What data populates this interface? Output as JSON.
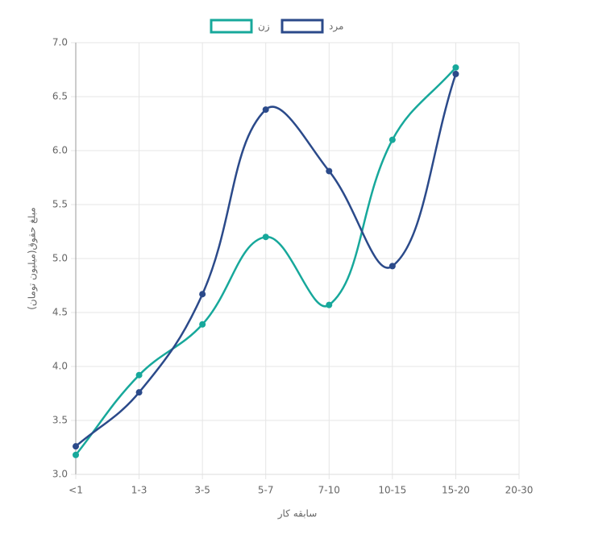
{
  "chart_data": {
    "type": "line",
    "categories": [
      "<1",
      "1-3",
      "3-5",
      "5-7",
      "7-10",
      "10-15",
      "15-20",
      "20-30"
    ],
    "series": [
      {
        "name": "زن",
        "color": "#17a89b",
        "values": [
          3.18,
          3.92,
          4.39,
          5.2,
          4.57,
          6.1,
          6.77,
          null
        ]
      },
      {
        "name": "مرد",
        "color": "#2b4a8a",
        "values": [
          3.26,
          3.76,
          4.67,
          6.38,
          5.81,
          4.93,
          6.71,
          null
        ]
      }
    ],
    "ylim": [
      3.0,
      7.0
    ],
    "yticks": [
      {
        "value": 3.0,
        "label": "3.0"
      },
      {
        "value": 3.5,
        "label": "3.5"
      },
      {
        "value": 4.0,
        "label": "4.0"
      },
      {
        "value": 4.5,
        "label": "4.5"
      },
      {
        "value": 5.0,
        "label": "5.0"
      },
      {
        "value": 5.5,
        "label": "5.5"
      },
      {
        "value": 6.0,
        "label": "6.0"
      },
      {
        "value": 6.5,
        "label": "6.5"
      },
      {
        "value": 7.0,
        "label": "7.0"
      }
    ],
    "x_label": "سابقه کار",
    "y_label": "مبلغ حقوق(میلیون تومان)",
    "grid": true,
    "legend": "top"
  }
}
